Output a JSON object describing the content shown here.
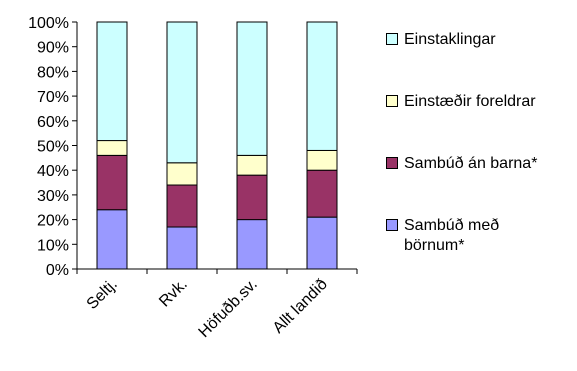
{
  "chart_data": {
    "type": "bar",
    "stacked": true,
    "percent": true,
    "categories": [
      "Seltj.",
      "Rvk.",
      "Höfuðb.sv.",
      "Allt landið"
    ],
    "ylim": [
      0,
      100
    ],
    "yticks": [
      "0%",
      "10%",
      "20%",
      "30%",
      "40%",
      "50%",
      "60%",
      "70%",
      "80%",
      "90%",
      "100%"
    ],
    "series": [
      {
        "name": "Sambúð með börnum*",
        "color": "#9999ff",
        "values": [
          24,
          17,
          20,
          21
        ]
      },
      {
        "name": "Sambúð án barna*",
        "color": "#993366",
        "values": [
          22,
          17,
          18,
          19
        ]
      },
      {
        "name": "Einstæðir foreldrar",
        "color": "#ffffcc",
        "values": [
          6,
          9,
          8,
          8
        ]
      },
      {
        "name": "Einstaklingar",
        "color": "#ccffff",
        "values": [
          48,
          57,
          54,
          52
        ]
      }
    ],
    "legend_position": "right",
    "legend_order": [
      3,
      2,
      1,
      0
    ],
    "grid": false
  }
}
